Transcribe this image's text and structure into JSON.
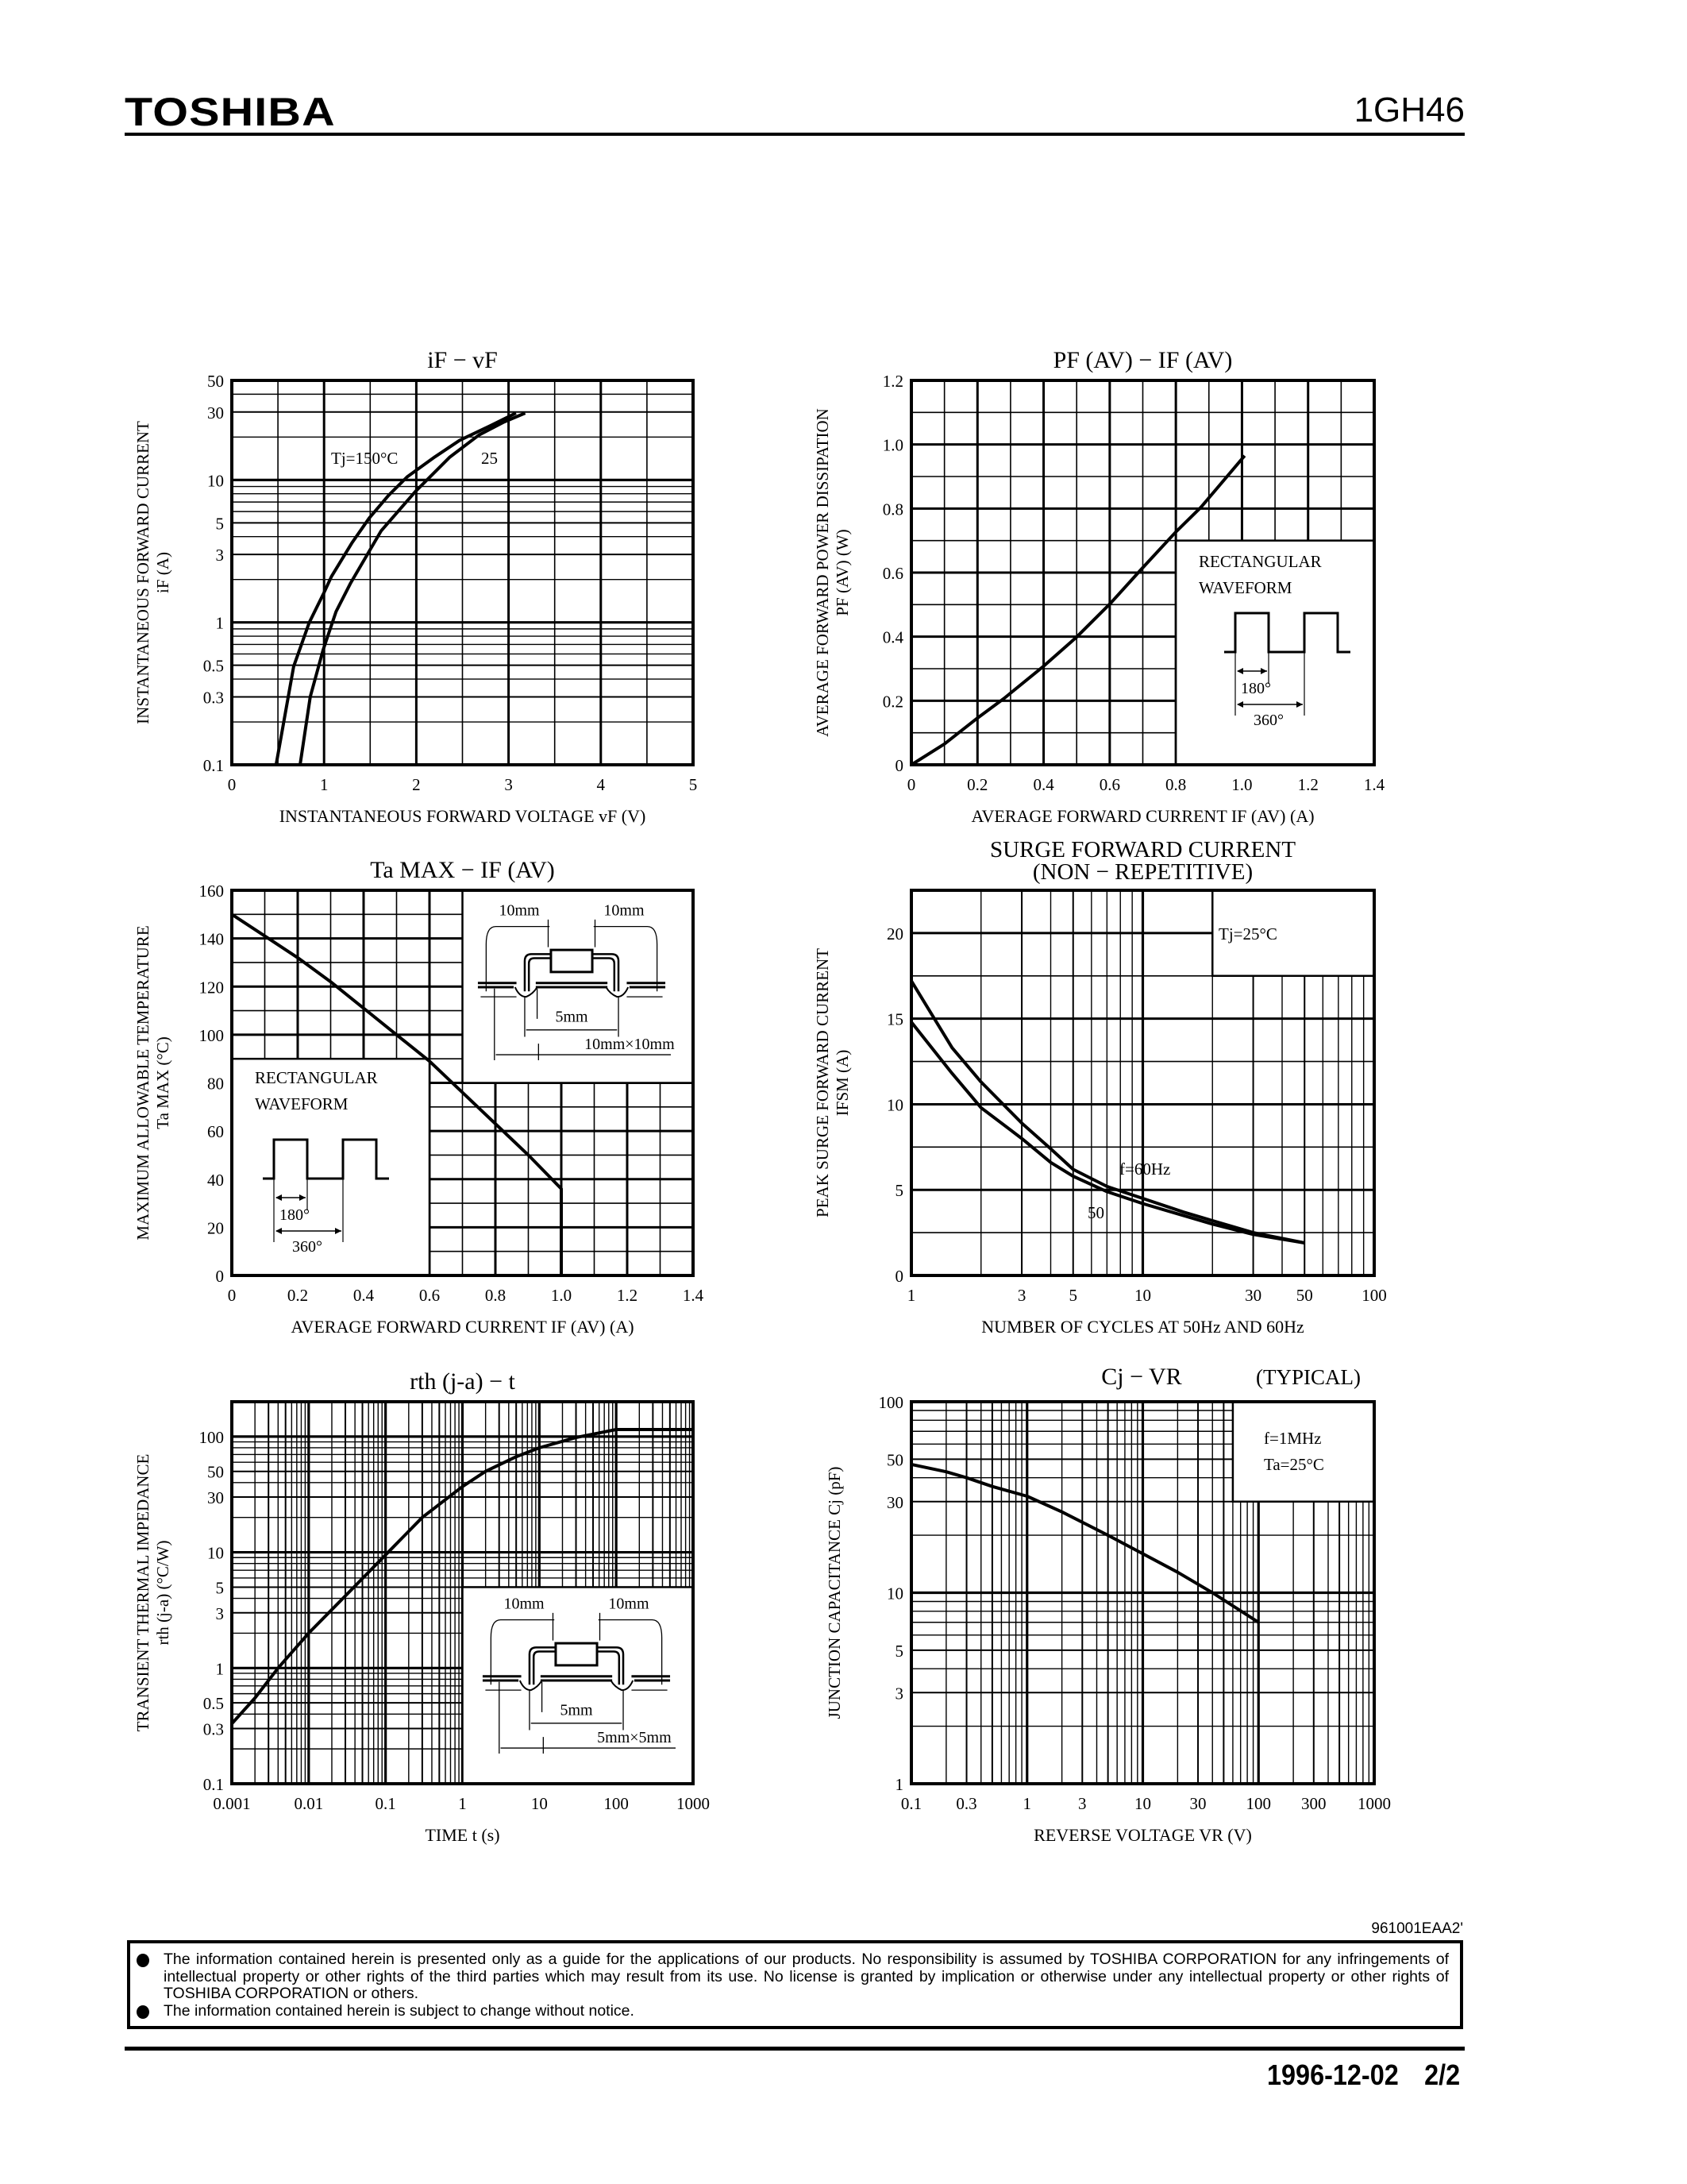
{
  "header": {
    "brand": "TOSHIBA",
    "part_number": "1GH46"
  },
  "footer": {
    "doc_code": "961001EAA2'",
    "disclaimer": [
      "The information contained herein is presented only as a guide for the applications of our products. No responsibility is assumed by TOSHIBA CORPORATION for any infringements of intellectual property or other rights of the third parties which may result from its use. No license is granted by implication or otherwise under any intellectual property or other rights of TOSHIBA CORPORATION or others.",
      "The information contained herein is subject to change without notice."
    ],
    "date": "1996-12-02",
    "page": "2/2"
  },
  "chart_data": [
    {
      "type": "line",
      "title": "iF − vF",
      "xlabel": "INSTANTANEOUS FORWARD VOLTAGE vF (V)",
      "ylabel": [
        "INSTANTANEOUS FORWARD CURRENT",
        "iF (A)"
      ],
      "xscale": "linear",
      "yscale": "log",
      "xlim": [
        0,
        5
      ],
      "ylim": [
        0.1,
        50
      ],
      "xticks": [
        "0",
        "1",
        "2",
        "3",
        "4",
        "5"
      ],
      "yticks": [
        "0.1",
        "0.3",
        "0.5",
        "1",
        "3",
        "5",
        "10",
        "30",
        "50"
      ],
      "grid": true,
      "series": [
        {
          "name": "Tj=150°C",
          "points": [
            [
              0.48,
              0.1
            ],
            [
              0.67,
              0.49
            ],
            [
              0.84,
              1
            ],
            [
              1.0,
              1.62
            ],
            [
              1.08,
              2.1
            ],
            [
              1.3,
              3.6
            ],
            [
              1.49,
              5.4
            ],
            [
              1.7,
              7.8
            ],
            [
              1.9,
              10.5
            ],
            [
              2.2,
              14.5
            ],
            [
              2.47,
              19
            ],
            [
              2.8,
              24
            ],
            [
              3.08,
              29.5
            ]
          ]
        },
        {
          "name": "25",
          "points": [
            [
              0.74,
              0.1
            ],
            [
              0.85,
              0.3
            ],
            [
              0.99,
              0.64
            ],
            [
              1.13,
              1.19
            ],
            [
              1.29,
              1.9
            ],
            [
              1.62,
              4.4
            ],
            [
              1.99,
              8.3
            ],
            [
              2.36,
              14.4
            ],
            [
              2.68,
              20.7
            ],
            [
              2.95,
              25.5
            ],
            [
              3.18,
              29.5
            ]
          ]
        }
      ]
    },
    {
      "type": "line",
      "title": "PF (AV) − IF (AV)",
      "xlabel": "AVERAGE FORWARD CURRENT IF (AV) (A)",
      "ylabel": [
        "AVERAGE FORWARD POWER DISSIPATION",
        "PF (AV) (W)"
      ],
      "xscale": "linear",
      "yscale": "linear",
      "xlim": [
        0,
        1.4
      ],
      "ylim": [
        0,
        1.2
      ],
      "xticks": [
        "0",
        "0.2",
        "0.4",
        "0.6",
        "0.8",
        "1.0",
        "1.2",
        "1.4"
      ],
      "yticks": [
        "0",
        "0.2",
        "0.4",
        "0.6",
        "0.8",
        "1.0",
        "1.2"
      ],
      "grid": true,
      "series": [
        {
          "points": [
            [
              0,
              0
            ],
            [
              0.1,
              0.065
            ],
            [
              0.2,
              0.146
            ],
            [
              0.28,
              0.207
            ],
            [
              0.4,
              0.308
            ],
            [
              0.5,
              0.399
            ],
            [
              0.603,
              0.505
            ],
            [
              0.696,
              0.611
            ],
            [
              0.8,
              0.727
            ],
            [
              0.875,
              0.803
            ],
            [
              1.008,
              0.965
            ]
          ]
        }
      ],
      "inset": {
        "text": [
          "RECTANGULAR",
          "WAVEFORM"
        ],
        "pulse": "180°",
        "period": "360°"
      }
    },
    {
      "type": "line",
      "title": "Ta MAX − IF (AV)",
      "xlabel": "AVERAGE FORWARD CURRENT IF (AV) (A)",
      "ylabel": [
        "MAXIMUM ALLOWABLE TEMPERATURE",
        "Ta MAX (°C)"
      ],
      "xscale": "linear",
      "yscale": "linear",
      "xlim": [
        0,
        1.4
      ],
      "ylim": [
        0,
        160
      ],
      "xticks": [
        "0",
        "0.2",
        "0.4",
        "0.6",
        "0.8",
        "1.0",
        "1.2",
        "1.4"
      ],
      "yticks": [
        "0",
        "20",
        "40",
        "60",
        "80",
        "100",
        "120",
        "140",
        "160"
      ],
      "grid": true,
      "series": [
        {
          "points": [
            [
              0,
              150
            ],
            [
              0.1,
              141
            ],
            [
              0.2,
              132
            ],
            [
              0.3,
              122
            ],
            [
              0.4,
              111
            ],
            [
              0.5,
              100
            ],
            [
              0.6,
              89
            ],
            [
              0.7,
              76
            ],
            [
              0.8,
              63
            ],
            [
              0.9,
              50
            ],
            [
              1.0,
              36
            ],
            [
              1.0,
              0
            ]
          ]
        }
      ],
      "inset": {
        "text": [
          "RECTANGULAR",
          "WAVEFORM"
        ],
        "pulse": "180°",
        "period": "360°"
      },
      "mounting": {
        "lead_left": "10mm",
        "lead_right": "10mm",
        "pad": "5mm",
        "board": "10mm×10mm"
      }
    },
    {
      "type": "line",
      "title": "SURGE FORWARD CURRENT",
      "subtitle": "(NON − REPETITIVE)",
      "xlabel": "NUMBER OF CYCLES AT 50Hz AND 60Hz",
      "ylabel": [
        "PEAK SURGE FORWARD CURRENT",
        "IFSM (A)"
      ],
      "xscale": "log",
      "yscale": "linear",
      "xlim": [
        1,
        100
      ],
      "ylim": [
        0,
        22.5
      ],
      "xticks": [
        "1",
        "3",
        "5",
        "10",
        "30",
        "50",
        "100"
      ],
      "yticks": [
        "0",
        "5",
        "10",
        "15",
        "20"
      ],
      "grid": true,
      "note": "Tj=25°C",
      "series": [
        {
          "name": "f=60Hz",
          "points": [
            [
              1,
              17.2
            ],
            [
              1.5,
              13.3
            ],
            [
              2,
              11.3
            ],
            [
              3,
              8.9
            ],
            [
              4,
              7.4
            ],
            [
              5,
              6.2
            ],
            [
              7,
              5.2
            ],
            [
              10,
              4.5
            ],
            [
              15,
              3.7
            ],
            [
              20,
              3.2
            ],
            [
              30,
              2.5
            ],
            [
              50,
              1.9
            ]
          ]
        },
        {
          "name": "50",
          "points": [
            [
              1,
              14.8
            ],
            [
              1.5,
              11.8
            ],
            [
              2,
              9.8
            ],
            [
              3,
              8.0
            ],
            [
              4,
              6.6
            ],
            [
              5,
              5.8
            ],
            [
              7,
              4.9
            ],
            [
              10,
              4.2
            ],
            [
              15,
              3.5
            ],
            [
              20,
              3.0
            ],
            [
              30,
              2.4
            ],
            [
              50,
              1.9
            ]
          ]
        }
      ]
    },
    {
      "type": "line",
      "title": "rth (j-a) − t",
      "xlabel": "TIME t (s)",
      "ylabel": [
        "TRANSIENT THERMAL IMPEDANCE",
        "rth (j-a) (°C/W)"
      ],
      "xscale": "log",
      "yscale": "log",
      "xlim": [
        0.001,
        1000
      ],
      "ylim": [
        0.1,
        200
      ],
      "xticks": [
        "0.001",
        "0.01",
        "0.1",
        "1",
        "10",
        "100",
        "1000"
      ],
      "yticks": [
        "0.1",
        "0.3",
        "0.5",
        "1",
        "3",
        "5",
        "10",
        "30",
        "50",
        "100"
      ],
      "grid": true,
      "series": [
        {
          "points": [
            [
              0.001,
              0.33
            ],
            [
              0.002,
              0.55
            ],
            [
              0.004,
              1
            ],
            [
              0.01,
              2
            ],
            [
              0.03,
              4.2
            ],
            [
              0.1,
              9.5
            ],
            [
              0.3,
              20
            ],
            [
              1,
              37
            ],
            [
              2,
              50
            ],
            [
              5,
              67
            ],
            [
              10,
              80
            ],
            [
              30,
              98
            ],
            [
              100,
              115
            ],
            [
              1000,
              115
            ]
          ]
        }
      ],
      "mounting": {
        "lead_left": "10mm",
        "lead_right": "10mm",
        "pad": "5mm",
        "board": "5mm×5mm"
      }
    },
    {
      "type": "line",
      "title": "Cj − VR",
      "title_note": "(TYPICAL)",
      "xlabel": "REVERSE VOLTAGE VR (V)",
      "ylabel": [
        "JUNCTION CAPACITANCE Cj (pF)"
      ],
      "xscale": "log",
      "yscale": "log",
      "xlim": [
        0.1,
        1000
      ],
      "ylim": [
        1,
        100
      ],
      "xticks": [
        "0.1",
        "0.3",
        "1",
        "3",
        "10",
        "30",
        "100",
        "300",
        "1000"
      ],
      "yticks": [
        "1",
        "3",
        "5",
        "10",
        "30",
        "50",
        "100"
      ],
      "grid": true,
      "notes": [
        "f=1MHz",
        "Ta=25°C"
      ],
      "series": [
        {
          "points": [
            [
              0.1,
              47
            ],
            [
              0.2,
              43
            ],
            [
              0.3,
              40
            ],
            [
              0.5,
              36
            ],
            [
              1,
              32
            ],
            [
              2,
              26.5
            ],
            [
              5,
              20
            ],
            [
              10,
              16
            ],
            [
              20,
              12.8
            ],
            [
              40,
              10
            ],
            [
              100,
              7
            ]
          ]
        }
      ]
    }
  ]
}
